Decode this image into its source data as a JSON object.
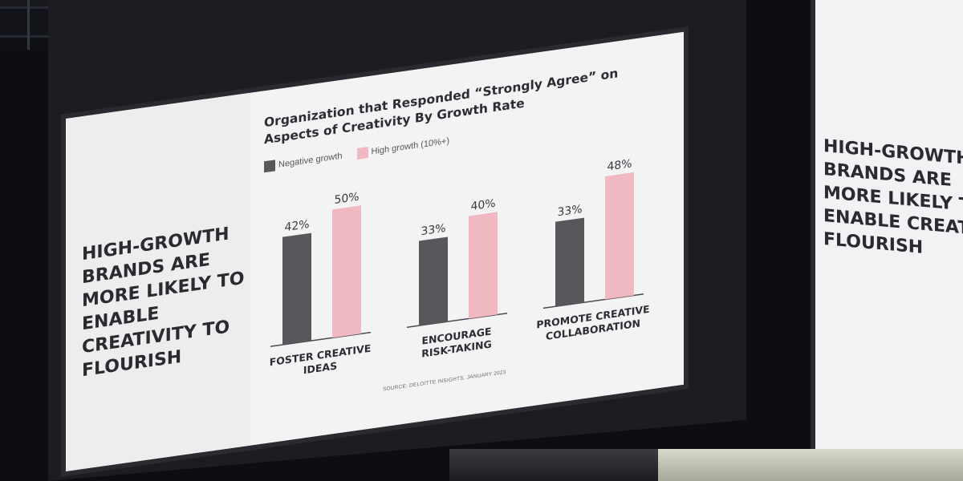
{
  "slide": {
    "headline": "HIGH-GROWTH BRANDS ARE MORE LIKELY TO ENABLE CREATIVITY TO FLOURISH",
    "source": "SOURCE: DELOITTE INSIGHTS, JANUARY 2023"
  },
  "second_screen": {
    "text": "HIGH-GROWTH BRANDS ARE MORE LIKELY TO ENABLE CREATI TO FLOURISH"
  },
  "chart_data": {
    "type": "bar",
    "title": "Organization that Responded “Strongly Agree” on Aspects of Creativity By Growth Rate",
    "categories": [
      "FOSTER CREATIVE IDEAS",
      "ENCOURAGE RISK-TAKING",
      "PROMOTE CREATIVE COLLABORATION"
    ],
    "series": [
      {
        "name": "Negative growth",
        "values": [
          42,
          33,
          33
        ],
        "color": "#58575c"
      },
      {
        "name": "High growth (10%+)",
        "values": [
          50,
          40,
          48
        ],
        "color": "#f0b8c0"
      }
    ],
    "value_format": "%",
    "legend_position": "top-left",
    "ylim": [
      0,
      55
    ],
    "grid": false
  }
}
